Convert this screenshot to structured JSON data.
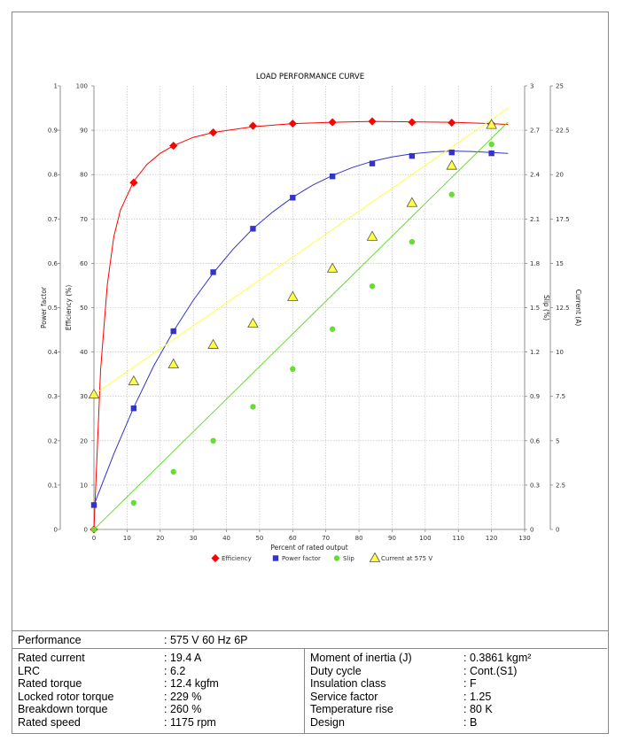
{
  "chart_data": {
    "type": "line",
    "title": "LOAD PERFORMANCE CURVE",
    "xlabel": "Percent of rated output",
    "xlim": [
      0,
      130
    ],
    "x_ticks": [
      "0",
      "10",
      "20",
      "30",
      "40",
      "50",
      "60",
      "70",
      "80",
      "90",
      "100",
      "110",
      "120",
      "130"
    ],
    "grid": true,
    "legend_position": "bottom",
    "axes": {
      "power_factor": {
        "label": "Power factor",
        "side": "left-outer",
        "range": [
          0,
          1
        ],
        "ticks": [
          "0",
          "0.1",
          "0.2",
          "0.3",
          "0.4",
          "0.5",
          "0.6",
          "0.7",
          "0.8",
          "0.9",
          "1"
        ]
      },
      "efficiency": {
        "label": "Efficiency (%)",
        "side": "left-inner",
        "range": [
          0,
          100
        ],
        "ticks": [
          "0",
          "10",
          "20",
          "30",
          "40",
          "50",
          "60",
          "70",
          "80",
          "90",
          "100"
        ]
      },
      "slip": {
        "label": "Slip (%)",
        "side": "right-inner",
        "range": [
          0,
          3
        ],
        "ticks": [
          "0",
          "0.3",
          "0.6",
          "0.9",
          "1.2",
          "1.5",
          "1.8",
          "2.1",
          "2.4",
          "2.7",
          "3"
        ]
      },
      "current": {
        "label": "Current (A)",
        "side": "right-outer",
        "range": [
          0,
          25
        ],
        "ticks": [
          "0",
          "2.5",
          "5",
          "7.5",
          "10",
          "12.5",
          "15",
          "17.5",
          "20",
          "22.5",
          "25"
        ]
      }
    },
    "series": [
      {
        "name": "Efficiency",
        "axis": "efficiency",
        "color": "#ff0000",
        "marker": "diamond",
        "x": [
          0,
          12,
          24,
          36,
          48,
          60,
          72,
          84,
          96,
          108,
          120
        ],
        "values": [
          0,
          78.2,
          86.5,
          89.5,
          91.0,
          91.5,
          91.8,
          92.0,
          91.8,
          91.7,
          91.4
        ],
        "curve_x": [
          0,
          2,
          4,
          6,
          8,
          12,
          16,
          20,
          24,
          30,
          36,
          48,
          60,
          72,
          84,
          96,
          108,
          120,
          125
        ],
        "curve_y": [
          0,
          36,
          55,
          66,
          72,
          78.5,
          82.3,
          84.8,
          86.5,
          88.4,
          89.5,
          90.8,
          91.5,
          91.8,
          92.0,
          91.9,
          91.8,
          91.5,
          91.3
        ]
      },
      {
        "name": "Power factor",
        "axis": "power_factor",
        "color": "#3333cc",
        "marker": "square",
        "x": [
          0,
          12,
          24,
          36,
          48,
          60,
          72,
          84,
          96,
          108,
          120
        ],
        "values": [
          0.055,
          0.273,
          0.447,
          0.58,
          0.678,
          0.748,
          0.796,
          0.825,
          0.842,
          0.85,
          0.848
        ],
        "curve_x": [
          0,
          6,
          12,
          18,
          24,
          30,
          36,
          42,
          48,
          54,
          60,
          66,
          72,
          78,
          84,
          90,
          96,
          102,
          108,
          114,
          120,
          125
        ],
        "curve_y": [
          0.055,
          0.17,
          0.275,
          0.368,
          0.447,
          0.517,
          0.578,
          0.632,
          0.678,
          0.716,
          0.749,
          0.776,
          0.798,
          0.816,
          0.83,
          0.84,
          0.847,
          0.851,
          0.853,
          0.852,
          0.85,
          0.848
        ]
      },
      {
        "name": "Slip",
        "axis": "slip",
        "color": "#66dd33",
        "marker": "circle",
        "x": [
          0,
          12,
          24,
          36,
          48,
          60,
          72,
          84,
          96,
          108,
          120
        ],
        "values": [
          0,
          0.18,
          0.39,
          0.6,
          0.83,
          1.085,
          1.355,
          1.645,
          1.945,
          2.265,
          2.605
        ],
        "curve_x": [
          0,
          125
        ],
        "curve_y": [
          0,
          2.755
        ]
      },
      {
        "name": "Current at 575 V",
        "axis": "current",
        "color": "#ffff44",
        "marker": "triangle",
        "x": [
          0,
          12,
          24,
          36,
          48,
          60,
          72,
          84,
          96,
          108,
          120
        ],
        "values": [
          7.6,
          8.35,
          9.3,
          10.4,
          11.6,
          13.1,
          14.7,
          16.5,
          18.4,
          20.5,
          22.8
        ],
        "curve_x": [
          0,
          125
        ],
        "curve_y": [
          7.6,
          23.75
        ]
      }
    ]
  },
  "specs": {
    "performance_label": "Performance",
    "performance_value": ": 575 V 60 Hz 6P",
    "left": [
      {
        "label": "Rated current",
        "value": ": 19.4 A"
      },
      {
        "label": "LRC",
        "value": ": 6.2"
      },
      {
        "label": "Rated torque",
        "value": ": 12.4 kgfm"
      },
      {
        "label": "Locked rotor torque",
        "value": ": 229 %"
      },
      {
        "label": "Breakdown torque",
        "value": ": 260 %"
      },
      {
        "label": "Rated speed",
        "value": ": 1175 rpm"
      }
    ],
    "right": [
      {
        "label": "Moment of inertia (J)",
        "value": ": 0.3861 kgm²"
      },
      {
        "label": "Duty cycle",
        "value": ": Cont.(S1)"
      },
      {
        "label": "Insulation class",
        "value": ": F"
      },
      {
        "label": "Service factor",
        "value": ": 1.25"
      },
      {
        "label": "Temperature rise",
        "value": ": 80 K"
      },
      {
        "label": "Design",
        "value": ": B"
      }
    ]
  }
}
